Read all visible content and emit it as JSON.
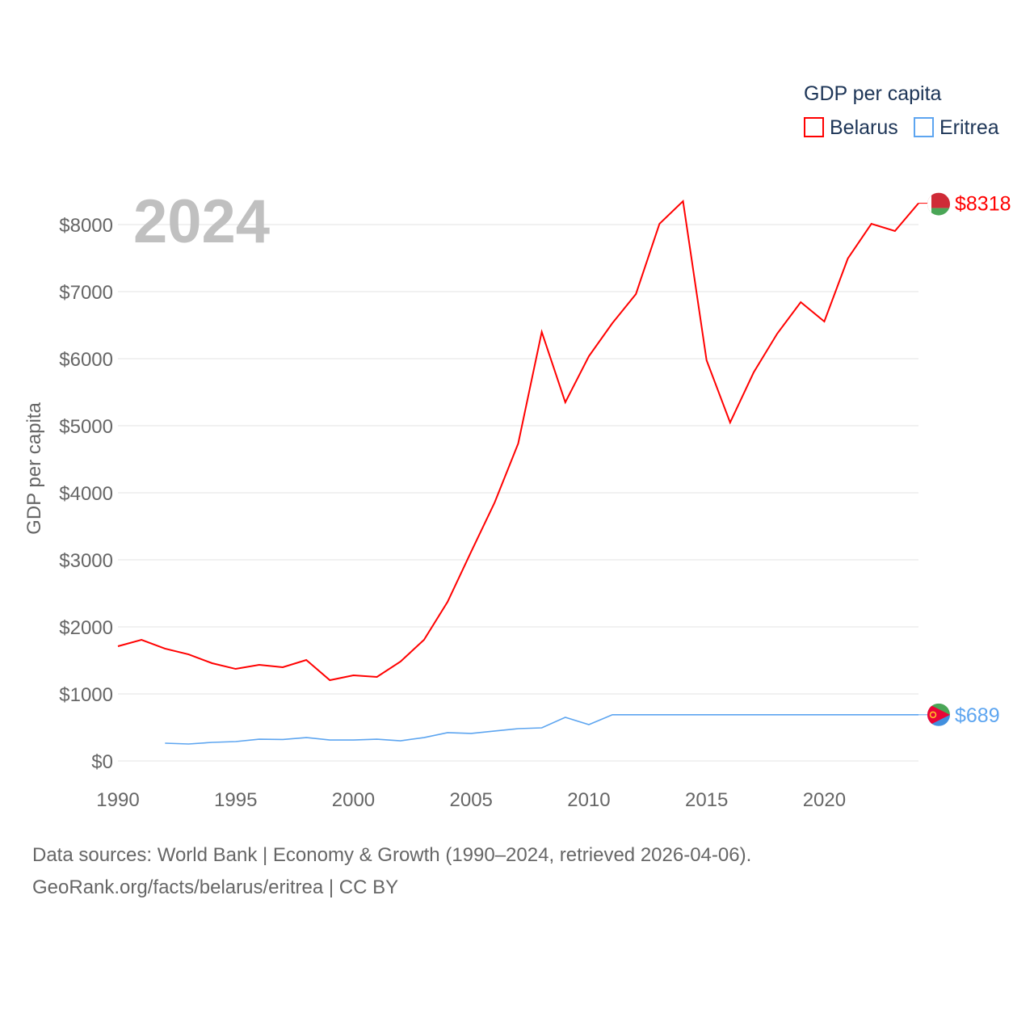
{
  "chart_data": {
    "type": "line",
    "title": "",
    "year_label": "2024",
    "ylabel": "GDP per capita",
    "xlabel": "",
    "legend_title": "GDP per capita",
    "legend_position": "top-right",
    "xlim": [
      1990,
      2024
    ],
    "ylim": [
      0,
      8500
    ],
    "x_ticks": [
      1990,
      1995,
      2000,
      2005,
      2010,
      2015,
      2020
    ],
    "y_ticks": [
      0,
      1000,
      2000,
      3000,
      4000,
      5000,
      6000,
      7000,
      8000
    ],
    "y_tick_labels": [
      "$0",
      "$1000",
      "$2000",
      "$3000",
      "$4000",
      "$5000",
      "$6000",
      "$7000",
      "$8000"
    ],
    "grid": true,
    "series": [
      {
        "name": "Belarus",
        "color": "#ff0000",
        "end_label": "$8318",
        "x": [
          1990,
          1991,
          1992,
          1993,
          1994,
          1995,
          1996,
          1997,
          1998,
          1999,
          2000,
          2001,
          2002,
          2003,
          2004,
          2005,
          2006,
          2007,
          2008,
          2009,
          2010,
          2011,
          2012,
          2013,
          2014,
          2015,
          2016,
          2017,
          2018,
          2019,
          2020,
          2021,
          2022,
          2023,
          2024
        ],
        "values": [
          1711,
          1807,
          1675,
          1590,
          1458,
          1373,
          1434,
          1398,
          1506,
          1205,
          1277,
          1253,
          1482,
          1807,
          2373,
          3120,
          3855,
          4735,
          6398,
          5349,
          6036,
          6530,
          6964,
          8012,
          8349,
          5976,
          5048,
          5795,
          6373,
          6843,
          6554,
          7494,
          8012,
          7904,
          8318
        ]
      },
      {
        "name": "Eritrea",
        "color": "#5da5f0",
        "end_label": "$689",
        "x": [
          1992,
          1993,
          1994,
          1995,
          1996,
          1997,
          1998,
          1999,
          2000,
          2001,
          2002,
          2003,
          2004,
          2005,
          2006,
          2007,
          2008,
          2009,
          2010,
          2011,
          2012,
          2013,
          2014,
          2015,
          2016,
          2017,
          2018,
          2019,
          2020,
          2021,
          2022,
          2023,
          2024
        ],
        "values": [
          265,
          253,
          277,
          289,
          325,
          320,
          349,
          313,
          313,
          325,
          301,
          349,
          422,
          410,
          446,
          482,
          494,
          651,
          542,
          689,
          689,
          689,
          689,
          689,
          689,
          689,
          689,
          689,
          689,
          689,
          689,
          689,
          689
        ]
      }
    ]
  },
  "footer": {
    "line1": "Data sources: World Bank | Economy & Growth (1990–2024, retrieved 2026-04-06).",
    "line2": "GeoRank.org/facts/belarus/eritrea | CC BY"
  }
}
